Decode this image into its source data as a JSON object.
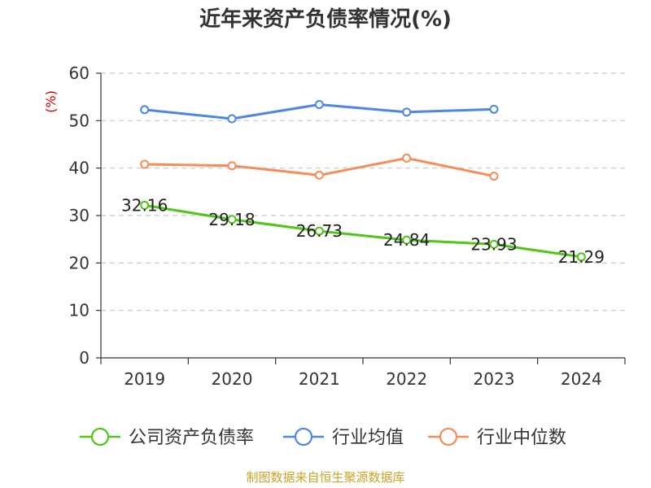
{
  "chart_data": {
    "type": "line",
    "title": "近年来资产负债率情况(%)",
    "ylabel": "(%)",
    "categories": [
      "2019",
      "2020",
      "2021",
      "2022",
      "2023",
      "2024"
    ],
    "ylim": [
      0,
      60
    ],
    "yticks": [
      0,
      10,
      20,
      30,
      40,
      50,
      60
    ],
    "grid": true,
    "legend_position": "bottom",
    "series": [
      {
        "name": "公司资产负债率",
        "color": "#52c41a",
        "values": [
          32.16,
          29.18,
          26.73,
          24.84,
          23.93,
          21.29
        ],
        "labels": [
          "32.16",
          "29.18",
          "26.73",
          "24.84",
          "23.93",
          "21.29"
        ]
      },
      {
        "name": "行业均值",
        "color": "#4f86e0",
        "values": [
          52.3,
          50.4,
          53.4,
          51.8,
          52.4,
          null
        ]
      },
      {
        "name": "行业中位数",
        "color": "#f58c5a",
        "values": [
          40.8,
          40.5,
          38.5,
          42.1,
          38.3,
          null
        ]
      }
    ]
  },
  "source": "制图数据来自恒生聚源数据库"
}
